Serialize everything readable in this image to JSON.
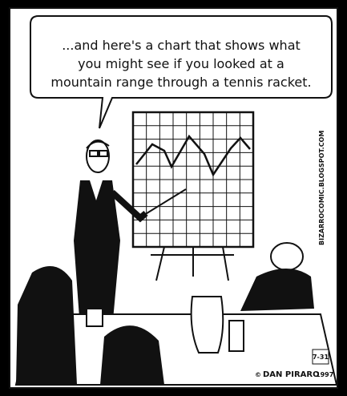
{
  "caption": {
    "lines": [
      "...and here's a chart that shows what",
      "you might see if you looked at a",
      "mountain range through a tennis racket."
    ]
  },
  "website": "BIZARROCOMIC.BLOGSPOT.COM",
  "signature": {
    "copyright": "©",
    "author": "DAN PIRARO",
    "year": "1997",
    "date": "7-31"
  }
}
